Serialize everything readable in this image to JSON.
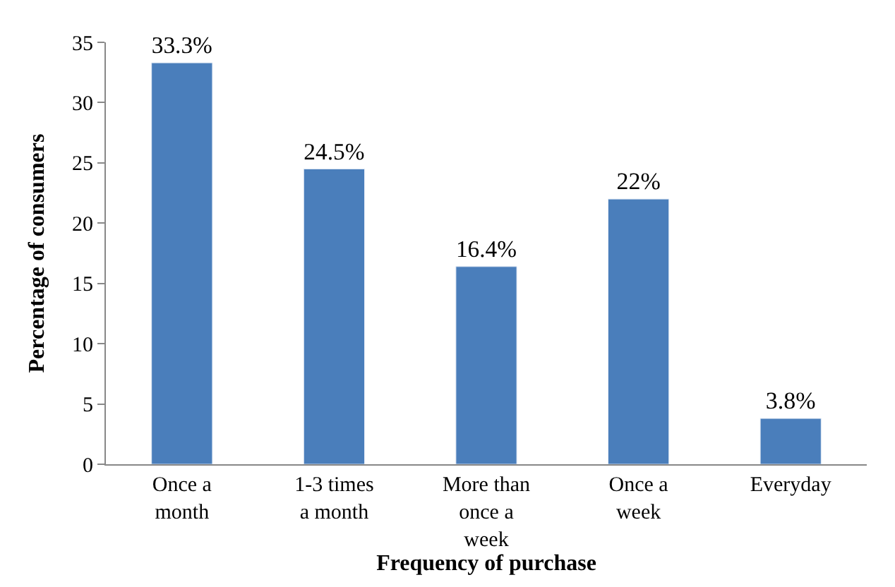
{
  "chart_data": {
    "type": "bar",
    "xlabel": "Frequency of purchase",
    "ylabel": "Percentage of consumers",
    "categories": [
      "Once a month",
      "1-3 times a month",
      "More than once a week",
      "Once a week",
      "Everyday"
    ],
    "values": [
      33.3,
      24.5,
      16.4,
      22,
      3.8
    ],
    "value_labels": [
      "33.3%",
      "24.5%",
      "16.4%",
      "22%",
      "3.8%"
    ],
    "color": "#4a7ebb",
    "ylim": [
      0,
      35
    ],
    "yticks": [
      0,
      5,
      10,
      15,
      20,
      25,
      30,
      35
    ]
  }
}
